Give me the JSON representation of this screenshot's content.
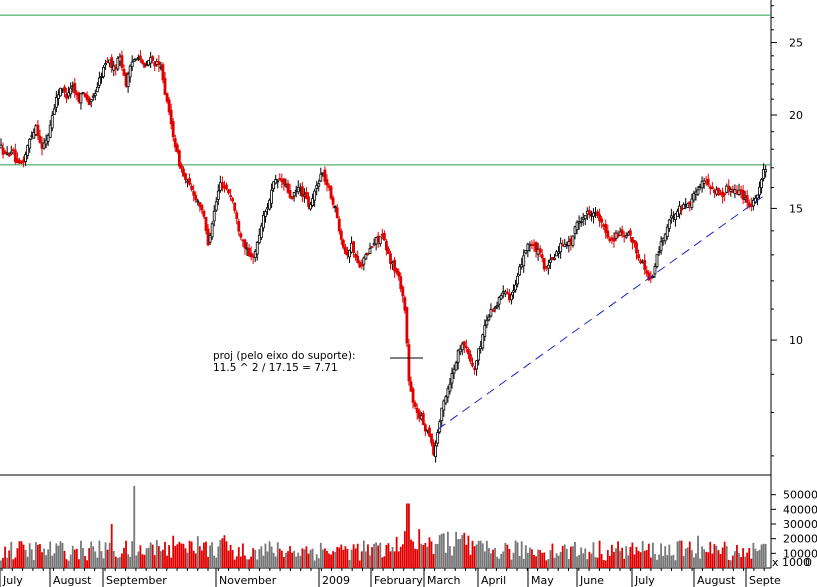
{
  "chart_data": {
    "type": "candlestick",
    "title": "",
    "xlabel": "",
    "ylabel": "",
    "y_scale": "log",
    "ylim": [
      6.6,
      28.5
    ],
    "y_ticks": [
      10,
      15,
      20,
      25
    ],
    "x_ticks": [
      "July",
      "August",
      "September",
      "November",
      "2009",
      "February",
      "March",
      "April",
      "May",
      "June",
      "July",
      "August",
      "Septe"
    ],
    "horizontal_lines": [
      27.2,
      17.15
    ],
    "trendline": {
      "from": {
        "x": "March",
        "y": 7.6
      },
      "to": {
        "x": "Septe",
        "y": 15.7
      }
    },
    "annotation": {
      "line1": "proj (pelo eixo do suporte):",
      "line2": "11.5 ^ 2 /  17.15 = 7.71"
    },
    "price_path": [
      [
        0,
        18.2
      ],
      [
        6,
        17.6
      ],
      [
        12,
        18.0
      ],
      [
        18,
        17.0
      ],
      [
        24,
        17.4
      ],
      [
        30,
        18.6
      ],
      [
        36,
        19.4
      ],
      [
        42,
        18.0
      ],
      [
        48,
        18.8
      ],
      [
        54,
        20.5
      ],
      [
        60,
        21.8
      ],
      [
        66,
        21.2
      ],
      [
        72,
        22.0
      ],
      [
        78,
        21.0
      ],
      [
        84,
        21.5
      ],
      [
        90,
        20.6
      ],
      [
        96,
        21.6
      ],
      [
        102,
        22.8
      ],
      [
        108,
        23.8
      ],
      [
        114,
        23.0
      ],
      [
        120,
        24.0
      ],
      [
        126,
        22.0
      ],
      [
        132,
        23.5
      ],
      [
        138,
        24.2
      ],
      [
        144,
        23.0
      ],
      [
        150,
        23.8
      ],
      [
        156,
        23.4
      ],
      [
        162,
        23.0
      ],
      [
        166,
        21.0
      ],
      [
        172,
        19.2
      ],
      [
        178,
        17.5
      ],
      [
        184,
        16.5
      ],
      [
        190,
        16.0
      ],
      [
        196,
        15.5
      ],
      [
        202,
        15.0
      ],
      [
        208,
        13.5
      ],
      [
        214,
        14.8
      ],
      [
        220,
        16.2
      ],
      [
        226,
        16.0
      ],
      [
        232,
        15.5
      ],
      [
        238,
        14.2
      ],
      [
        244,
        13.5
      ],
      [
        250,
        12.8
      ],
      [
        256,
        13.2
      ],
      [
        262,
        14.4
      ],
      [
        268,
        15.2
      ],
      [
        274,
        16.2
      ],
      [
        280,
        16.4
      ],
      [
        286,
        16.0
      ],
      [
        292,
        15.4
      ],
      [
        298,
        16.0
      ],
      [
        304,
        15.6
      ],
      [
        310,
        15.0
      ],
      [
        316,
        16.0
      ],
      [
        322,
        16.8
      ],
      [
        328,
        16.0
      ],
      [
        334,
        15.2
      ],
      [
        340,
        14.0
      ],
      [
        346,
        13.0
      ],
      [
        352,
        13.4
      ],
      [
        358,
        12.6
      ],
      [
        364,
        12.8
      ],
      [
        370,
        13.2
      ],
      [
        376,
        13.6
      ],
      [
        382,
        13.8
      ],
      [
        388,
        13.0
      ],
      [
        394,
        12.5
      ],
      [
        400,
        12.0
      ],
      [
        405,
        11.0
      ],
      [
        409,
        8.8
      ],
      [
        413,
        8.2
      ],
      [
        418,
        8.0
      ],
      [
        422,
        7.8
      ],
      [
        426,
        7.6
      ],
      [
        430,
        7.5
      ],
      [
        434,
        7.0
      ],
      [
        438,
        7.6
      ],
      [
        444,
        8.3
      ],
      [
        450,
        8.8
      ],
      [
        456,
        9.4
      ],
      [
        462,
        10.0
      ],
      [
        468,
        9.6
      ],
      [
        474,
        9.1
      ],
      [
        480,
        9.8
      ],
      [
        486,
        10.6
      ],
      [
        492,
        11.0
      ],
      [
        498,
        11.2
      ],
      [
        504,
        11.8
      ],
      [
        510,
        11.4
      ],
      [
        516,
        11.8
      ],
      [
        522,
        12.8
      ],
      [
        528,
        13.5
      ],
      [
        534,
        13.3
      ],
      [
        540,
        13.0
      ],
      [
        546,
        12.4
      ],
      [
        552,
        12.8
      ],
      [
        558,
        13.2
      ],
      [
        564,
        13.6
      ],
      [
        570,
        13.4
      ],
      [
        576,
        14.2
      ],
      [
        582,
        14.6
      ],
      [
        588,
        14.8
      ],
      [
        594,
        14.9
      ],
      [
        600,
        14.4
      ],
      [
        606,
        13.9
      ],
      [
        612,
        13.6
      ],
      [
        618,
        13.9
      ],
      [
        624,
        13.7
      ],
      [
        630,
        13.8
      ],
      [
        636,
        13.2
      ],
      [
        642,
        12.7
      ],
      [
        648,
        12.2
      ],
      [
        652,
        12.0
      ],
      [
        656,
        12.8
      ],
      [
        662,
        13.6
      ],
      [
        668,
        14.2
      ],
      [
        674,
        14.8
      ],
      [
        680,
        15.0
      ],
      [
        686,
        15.2
      ],
      [
        692,
        15.4
      ],
      [
        698,
        16.0
      ],
      [
        704,
        16.3
      ],
      [
        710,
        16.1
      ],
      [
        716,
        15.8
      ],
      [
        722,
        15.6
      ],
      [
        728,
        16.0
      ],
      [
        734,
        15.9
      ],
      [
        740,
        15.8
      ],
      [
        746,
        15.4
      ],
      [
        752,
        15.2
      ],
      [
        758,
        15.8
      ],
      [
        764,
        16.8
      ],
      [
        767,
        17.2
      ]
    ],
    "volume": {
      "ticks": [
        10000,
        20000,
        30000,
        40000,
        50000
      ],
      "tick_labels": [
        "10000",
        "20000",
        "30000",
        "40000",
        "50000"
      ],
      "scale_label": "x 1000",
      "baseline_label": "0",
      "ylim": [
        0,
        60000
      ],
      "spikes": [
        [
          135,
          56000
        ],
        [
          408,
          44000
        ],
        [
          112,
          30000
        ],
        [
          173,
          22000
        ],
        [
          698,
          22000
        ],
        [
          770,
          15000
        ]
      ]
    }
  }
}
